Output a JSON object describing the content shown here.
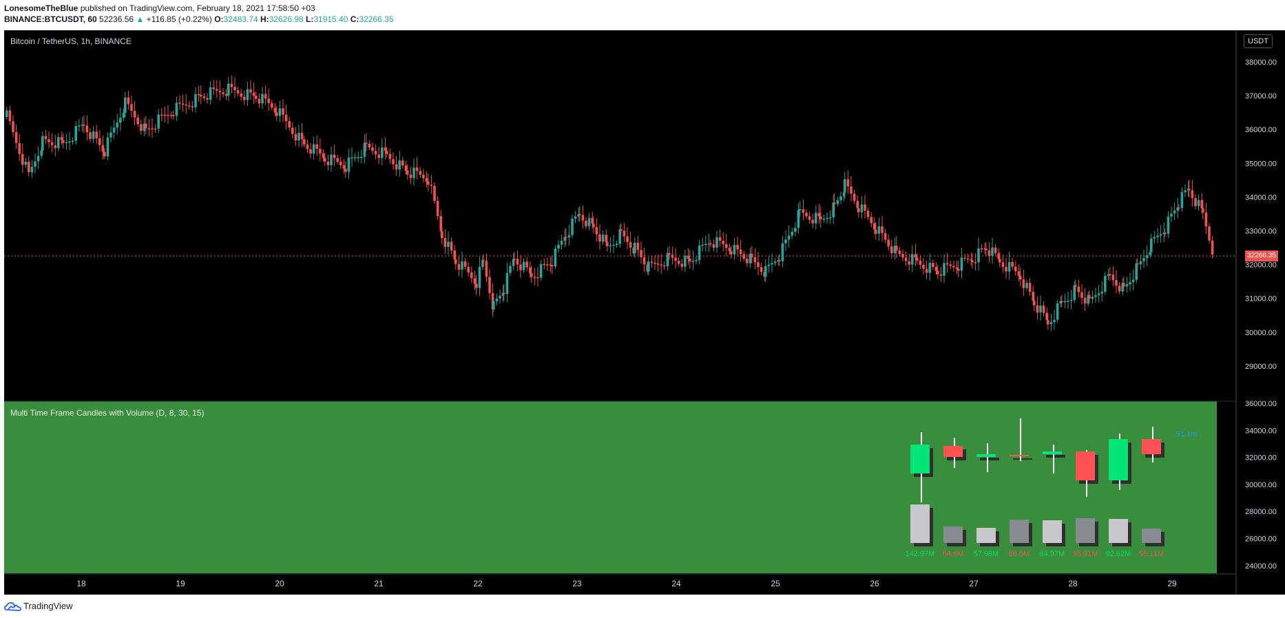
{
  "header": {
    "publisher": "LonesomeTheBlue",
    "published_text": "published on TradingView.com, February 18, 2021 17:58:50 +03",
    "symbol": "BINANCE:BTCUSDT, 60",
    "last_price": "52236.56",
    "change": "+116.85 (+0.22%)",
    "o_label": "O:",
    "o_value": "32483.74",
    "h_label": "H:",
    "h_value": "32626.98",
    "l_label": "L:",
    "l_value": "31915.40",
    "c_label": "C:",
    "c_value": "32266.35"
  },
  "chart": {
    "title": "Bitcoin / TetherUS, 1h, BINANCE",
    "currency_badge": "USDT",
    "current_price_tag": "32266.35",
    "price_axis_ticks": [
      "38000.00",
      "37000.00",
      "36000.00",
      "35000.00",
      "34000.00",
      "33000.00",
      "32000.00",
      "31000.00",
      "30000.00",
      "29000.00"
    ],
    "indicator_axis_ticks": [
      "36000.00",
      "34000.00",
      "32000.00",
      "30000.00",
      "28000.00",
      "26000.00",
      "24000.00"
    ],
    "time_axis_labels": [
      "18",
      "19",
      "20",
      "21",
      "22",
      "23",
      "24",
      "25",
      "26",
      "27",
      "28",
      "29"
    ],
    "colors": {
      "up": "#26a69a",
      "up_bright": "#0bda6a",
      "down": "#ef5350",
      "background": "#000000",
      "indicator_bg": "#388e3c"
    }
  },
  "indicator": {
    "title": "Multi Time Frame Candles with Volume (D, 8, 30, 15)",
    "last_volume_label": "91.1m",
    "volumes": [
      "142.97M",
      "64.6M",
      "57.98M",
      "88.5M",
      "84.97M",
      "95.91M",
      "92.62M",
      "55.11M"
    ],
    "volume_colors": [
      "#0bda6a",
      "#ef5350",
      "#0bda6a",
      "#ef5350",
      "#0bda6a",
      "#ef5350",
      "#0bda6a",
      "#ef5350"
    ]
  },
  "footer": {
    "brand": "TradingView"
  }
}
